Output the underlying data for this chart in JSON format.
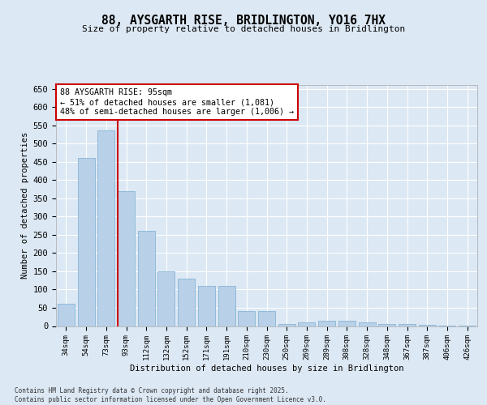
{
  "title": "88, AYSGARTH RISE, BRIDLINGTON, YO16 7HX",
  "subtitle": "Size of property relative to detached houses in Bridlington",
  "xlabel": "Distribution of detached houses by size in Bridlington",
  "ylabel": "Number of detached properties",
  "annotation_line1": "88 AYSGARTH RISE: 95sqm",
  "annotation_line2": "← 51% of detached houses are smaller (1,081)",
  "annotation_line3": "48% of semi-detached houses are larger (1,006) →",
  "bar_color": "#b8d0e8",
  "bar_edge_color": "#7aaed0",
  "line_color": "#cc0000",
  "background_color": "#dce8f4",
  "grid_color": "#ffffff",
  "footer": "Contains HM Land Registry data © Crown copyright and database right 2025.\nContains public sector information licensed under the Open Government Licence v3.0.",
  "categories": [
    "34sqm",
    "54sqm",
    "73sqm",
    "93sqm",
    "112sqm",
    "132sqm",
    "152sqm",
    "171sqm",
    "191sqm",
    "210sqm",
    "230sqm",
    "250sqm",
    "269sqm",
    "289sqm",
    "308sqm",
    "328sqm",
    "348sqm",
    "367sqm",
    "387sqm",
    "406sqm",
    "426sqm"
  ],
  "values": [
    60,
    460,
    535,
    370,
    260,
    150,
    130,
    110,
    110,
    40,
    40,
    5,
    10,
    15,
    15,
    10,
    5,
    5,
    3,
    2,
    2
  ],
  "red_line_x": 3.0,
  "ylim": [
    0,
    660
  ],
  "yticks": [
    0,
    50,
    100,
    150,
    200,
    250,
    300,
    350,
    400,
    450,
    500,
    550,
    600,
    650
  ]
}
